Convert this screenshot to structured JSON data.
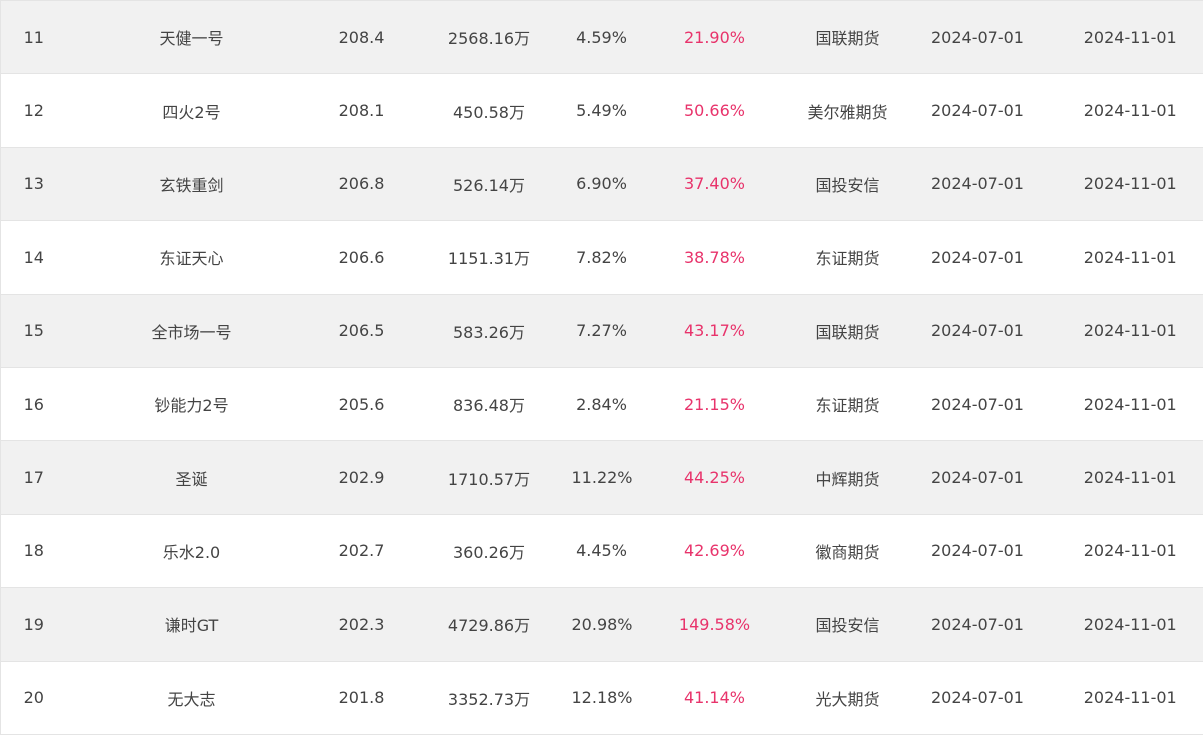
{
  "table": {
    "rows": [
      {
        "rank": "11",
        "name": "天健一号",
        "score": "208.4",
        "scale": "2568.16万",
        "drawdown": "4.59%",
        "return": "21.90%",
        "broker": "国联期货",
        "start": "2024-07-01",
        "end": "2024-11-01"
      },
      {
        "rank": "12",
        "name": "四火2号",
        "score": "208.1",
        "scale": "450.58万",
        "drawdown": "5.49%",
        "return": "50.66%",
        "broker": "美尔雅期货",
        "start": "2024-07-01",
        "end": "2024-11-01"
      },
      {
        "rank": "13",
        "name": "玄铁重剑",
        "score": "206.8",
        "scale": "526.14万",
        "drawdown": "6.90%",
        "return": "37.40%",
        "broker": "国投安信",
        "start": "2024-07-01",
        "end": "2024-11-01"
      },
      {
        "rank": "14",
        "name": "东证天心",
        "score": "206.6",
        "scale": "1151.31万",
        "drawdown": "7.82%",
        "return": "38.78%",
        "broker": "东证期货",
        "start": "2024-07-01",
        "end": "2024-11-01"
      },
      {
        "rank": "15",
        "name": "全市场一号",
        "score": "206.5",
        "scale": "583.26万",
        "drawdown": "7.27%",
        "return": "43.17%",
        "broker": "国联期货",
        "start": "2024-07-01",
        "end": "2024-11-01"
      },
      {
        "rank": "16",
        "name": "钞能力2号",
        "score": "205.6",
        "scale": "836.48万",
        "drawdown": "2.84%",
        "return": "21.15%",
        "broker": "东证期货",
        "start": "2024-07-01",
        "end": "2024-11-01"
      },
      {
        "rank": "17",
        "name": "圣诞",
        "score": "202.9",
        "scale": "1710.57万",
        "drawdown": "11.22%",
        "return": "44.25%",
        "broker": "中辉期货",
        "start": "2024-07-01",
        "end": "2024-11-01"
      },
      {
        "rank": "18",
        "name": "乐水2.0",
        "score": "202.7",
        "scale": "360.26万",
        "drawdown": "4.45%",
        "return": "42.69%",
        "broker": "徽商期货",
        "start": "2024-07-01",
        "end": "2024-11-01"
      },
      {
        "rank": "19",
        "name": "谦时GT",
        "score": "202.3",
        "scale": "4729.86万",
        "drawdown": "20.98%",
        "return": "149.58%",
        "broker": "国投安信",
        "start": "2024-07-01",
        "end": "2024-11-01"
      },
      {
        "rank": "20",
        "name": "无大志",
        "score": "201.8",
        "scale": "3352.73万",
        "drawdown": "12.18%",
        "return": "41.14%",
        "broker": "光大期货",
        "start": "2024-07-01",
        "end": "2024-11-01"
      }
    ]
  },
  "colors": {
    "row_alt_bg": "#f1f1f1",
    "text": "#444444",
    "return_text": "#e8336b",
    "border": "#e4e4e4"
  }
}
